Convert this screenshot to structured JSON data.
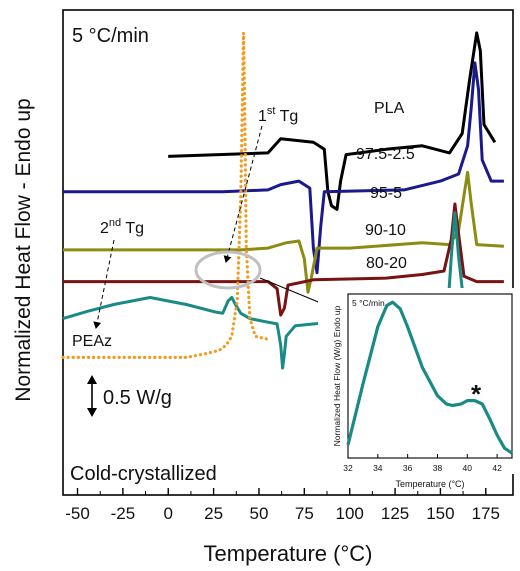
{
  "chart_data": {
    "type": "line",
    "rate_label": "5 °C/min",
    "state_label": "Cold-crystallized",
    "xlabel": "Temperature (°C)",
    "ylabel": "Normalized Heat Flow - Endo up",
    "xlim": [
      -58,
      190
    ],
    "x_ticks": [
      -50,
      -25,
      0,
      25,
      50,
      75,
      100,
      125,
      150,
      175
    ],
    "scale_bar_label": "0.5 W/g",
    "annotations": {
      "tg1": {
        "base": "1",
        "sup": "st",
        "suffix": " Tg"
      },
      "tg2": {
        "base": "2",
        "sup": "nd",
        "suffix": " Tg"
      }
    },
    "colors": {
      "PLA": "#000000",
      "97.5-2.5": "#1a1a8c",
      "95-5": "#8c8c14",
      "90-10": "#7a1212",
      "80-20": "#1a8a86",
      "PEAz": "#f59a1e",
      "circle": "#c0c0c0",
      "star": "#f59a1e"
    },
    "series": [
      {
        "name": "PLA",
        "points": [
          [
            0,
            0.32
          ],
          [
            55,
            0.34
          ],
          [
            62,
            0.42
          ],
          [
            80,
            0.4
          ],
          [
            86,
            0.36
          ],
          [
            88,
            0.12
          ],
          [
            90,
            0.04
          ],
          [
            93,
            0.02
          ],
          [
            95,
            0.18
          ],
          [
            98,
            0.33
          ],
          [
            120,
            0.36
          ],
          [
            140,
            0.38
          ],
          [
            155,
            0.34
          ],
          [
            162,
            0.45
          ],
          [
            166,
            0.75
          ],
          [
            170,
            1.02
          ],
          [
            172,
            0.92
          ],
          [
            174,
            0.5
          ],
          [
            180,
            0.4
          ]
        ]
      },
      {
        "name": "97.5-2.5",
        "points": [
          [
            -58,
            0.12
          ],
          [
            30,
            0.12
          ],
          [
            55,
            0.13
          ],
          [
            62,
            0.16
          ],
          [
            72,
            0.18
          ],
          [
            78,
            0.14
          ],
          [
            80,
            -0.2
          ],
          [
            82,
            -0.34
          ],
          [
            84,
            -0.08
          ],
          [
            86,
            0.12
          ],
          [
            130,
            0.13
          ],
          [
            150,
            0.18
          ],
          [
            160,
            0.22
          ],
          [
            165,
            0.38
          ],
          [
            167,
            0.6
          ],
          [
            169,
            0.85
          ],
          [
            171,
            0.7
          ],
          [
            173,
            0.3
          ],
          [
            178,
            0.18
          ],
          [
            185,
            0.18
          ]
        ]
      },
      {
        "name": "95-5",
        "points": [
          [
            -58,
            -0.21
          ],
          [
            40,
            -0.21
          ],
          [
            55,
            -0.2
          ],
          [
            65,
            -0.17
          ],
          [
            72,
            -0.16
          ],
          [
            75,
            -0.26
          ],
          [
            77,
            -0.45
          ],
          [
            79,
            -0.36
          ],
          [
            82,
            -0.2
          ],
          [
            100,
            -0.2
          ],
          [
            140,
            -0.17
          ],
          [
            155,
            -0.18
          ],
          [
            160,
            -0.1
          ],
          [
            163,
            0.1
          ],
          [
            165,
            0.23
          ],
          [
            167,
            0.05
          ],
          [
            170,
            -0.18
          ],
          [
            185,
            -0.19
          ]
        ]
      },
      {
        "name": "90-10",
        "points": [
          [
            -58,
            -0.39
          ],
          [
            30,
            -0.39
          ],
          [
            45,
            -0.39
          ],
          [
            55,
            -0.39
          ],
          [
            60,
            -0.43
          ],
          [
            62,
            -0.58
          ],
          [
            64,
            -0.54
          ],
          [
            66,
            -0.41
          ],
          [
            80,
            -0.38
          ],
          [
            120,
            -0.37
          ],
          [
            140,
            -0.35
          ],
          [
            152,
            -0.33
          ],
          [
            156,
            -0.15
          ],
          [
            158,
            0.05
          ],
          [
            160,
            -0.12
          ],
          [
            163,
            -0.36
          ],
          [
            170,
            -0.39
          ],
          [
            185,
            -0.39
          ]
        ]
      },
      {
        "name": "80-20",
        "points": [
          [
            -58,
            -0.6
          ],
          [
            -45,
            -0.56
          ],
          [
            -30,
            -0.52
          ],
          [
            -10,
            -0.48
          ],
          [
            10,
            -0.52
          ],
          [
            25,
            -0.56
          ],
          [
            30,
            -0.57
          ],
          [
            33,
            -0.5
          ],
          [
            35,
            -0.48
          ],
          [
            37,
            -0.52
          ],
          [
            40,
            -0.57
          ],
          [
            45,
            -0.6
          ],
          [
            55,
            -0.62
          ],
          [
            60,
            -0.63
          ],
          [
            62,
            -0.75
          ],
          [
            63,
            -0.88
          ],
          [
            64,
            -0.8
          ],
          [
            65,
            -0.7
          ],
          [
            70,
            -0.64
          ],
          [
            100,
            -0.61
          ],
          [
            140,
            -0.58
          ],
          [
            150,
            -0.56
          ],
          [
            154,
            -0.55
          ],
          [
            156,
            -0.25
          ],
          [
            158,
            0.0
          ],
          [
            160,
            -0.25
          ],
          [
            163,
            -0.52
          ],
          [
            170,
            -0.54
          ],
          [
            180,
            -0.53
          ]
        ]
      },
      {
        "name": "PEAz",
        "points": [
          [
            -58,
            -0.82
          ],
          [
            10,
            -0.82
          ],
          [
            20,
            -0.8
          ],
          [
            28,
            -0.78
          ],
          [
            32,
            -0.75
          ],
          [
            35,
            -0.7
          ],
          [
            38,
            -0.5
          ],
          [
            40,
            0.1
          ],
          [
            41,
            0.7
          ],
          [
            41.5,
            1.02
          ],
          [
            42,
            0.7
          ],
          [
            43,
            -0.2
          ],
          [
            45,
            -0.6
          ],
          [
            48,
            -0.7
          ],
          [
            52,
            -0.71
          ],
          [
            56,
            -0.72
          ]
        ]
      }
    ],
    "series_labels": [
      {
        "name": "PLA",
        "text": "PLA"
      },
      {
        "name": "97.5-2.5",
        "text": "97.5-2.5"
      },
      {
        "name": "95-5",
        "text": "95-5"
      },
      {
        "name": "90-10",
        "text": "90-10"
      },
      {
        "name": "80-20",
        "text": "80-20"
      },
      {
        "name": "PEAz",
        "text": "PEAz"
      }
    ],
    "inset": {
      "title": "5 °C/min",
      "xlabel": "Temperature (°C)",
      "ylabel": "Normalized Heat Flow (W/g) Endo up",
      "xlim": [
        32,
        43
      ],
      "x_ticks": [
        32,
        34,
        36,
        38,
        40,
        42
      ],
      "star": "*",
      "series": {
        "name": "80-20",
        "points": [
          [
            32,
            0.08
          ],
          [
            33,
            0.45
          ],
          [
            34,
            0.8
          ],
          [
            34.6,
            0.93
          ],
          [
            35,
            0.95
          ],
          [
            35.5,
            0.91
          ],
          [
            36,
            0.8
          ],
          [
            37,
            0.55
          ],
          [
            38,
            0.38
          ],
          [
            38.6,
            0.33
          ],
          [
            39,
            0.32
          ],
          [
            39.6,
            0.33
          ],
          [
            40,
            0.35
          ],
          [
            40.5,
            0.35
          ],
          [
            41,
            0.33
          ],
          [
            41.5,
            0.24
          ],
          [
            42,
            0.14
          ],
          [
            42.5,
            0.06
          ],
          [
            43,
            0.03
          ]
        ]
      }
    }
  }
}
